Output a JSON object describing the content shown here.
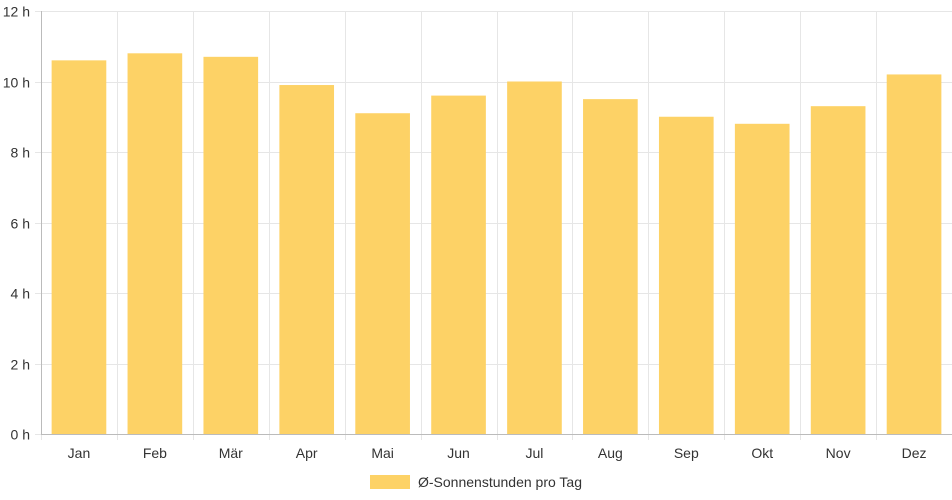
{
  "chart_data": {
    "type": "bar",
    "categories": [
      "Jan",
      "Feb",
      "Mär",
      "Apr",
      "Mai",
      "Jun",
      "Jul",
      "Aug",
      "Sep",
      "Okt",
      "Nov",
      "Dez"
    ],
    "series": [
      {
        "name": "Ø-Sonnenstunden pro Tag",
        "values": [
          10.6,
          10.8,
          10.7,
          9.9,
          9.1,
          9.6,
          10.0,
          9.5,
          9.0,
          8.8,
          9.3,
          10.2
        ]
      }
    ],
    "y_ticks": [
      "0 h",
      "2 h",
      "4 h",
      "6 h",
      "8 h",
      "10 h",
      "12 h"
    ],
    "ylim": [
      0,
      12
    ],
    "grid": true,
    "legend_position": "bottom-center",
    "colors": {
      "bar": "#fdd266",
      "grid": "#e6e6e6",
      "axis": "#bbbbbb"
    }
  }
}
